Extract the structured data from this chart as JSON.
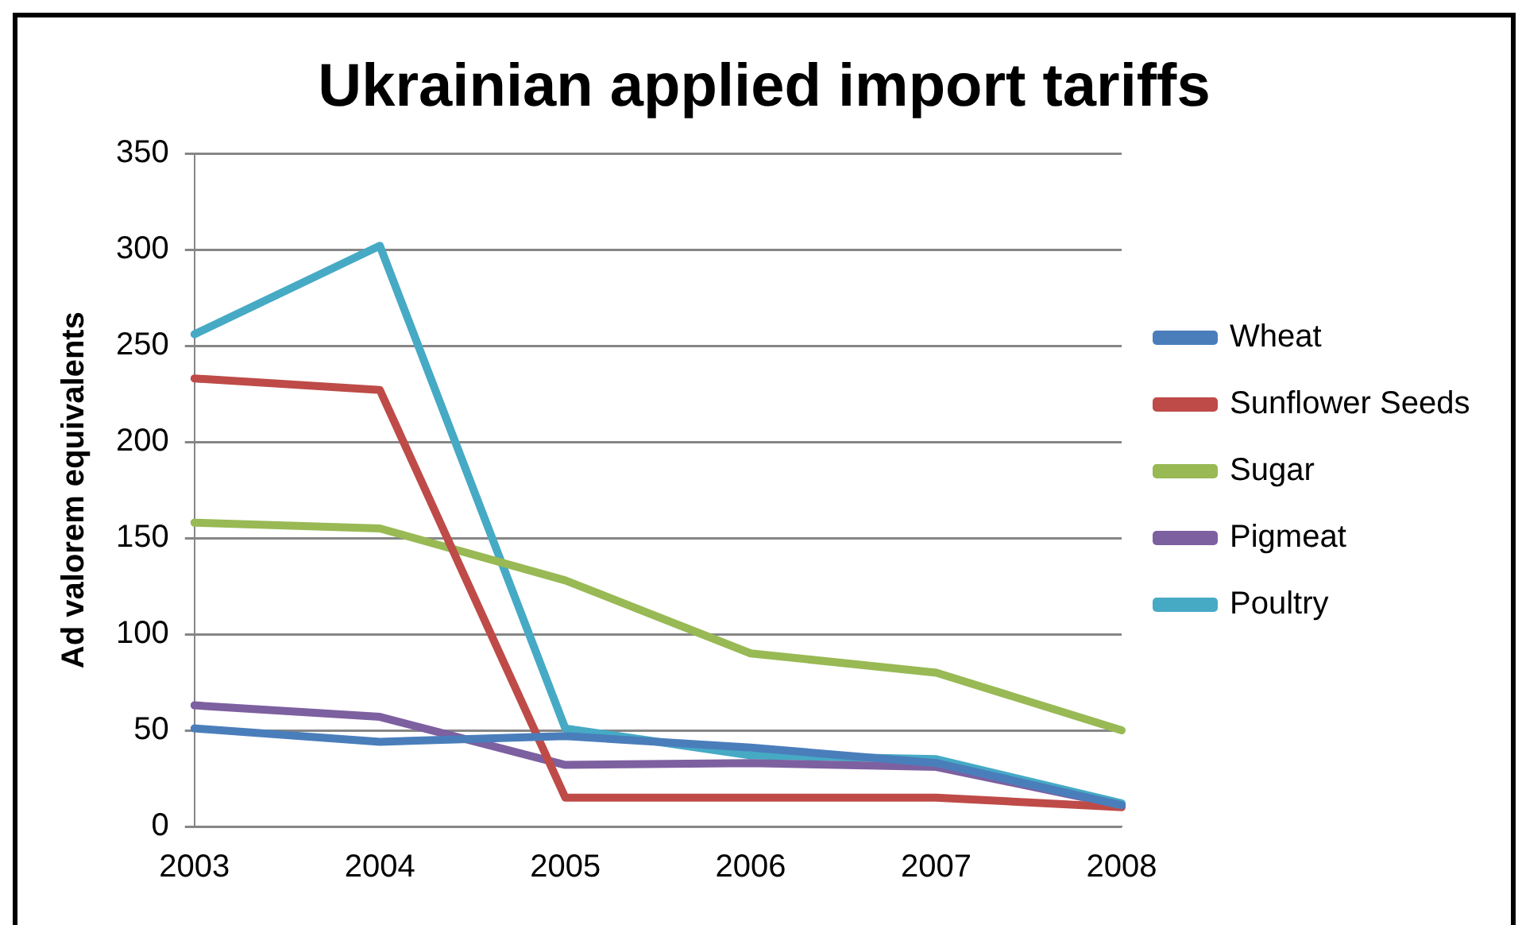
{
  "chart_data": {
    "type": "line",
    "title": "Ukrainian applied import tariffs",
    "ylabel": "Ad valorem equivalents",
    "categories": [
      "2003",
      "2004",
      "2005",
      "2006",
      "2007",
      "2008"
    ],
    "series": [
      {
        "name": "Wheat",
        "color": "#4a7ebb",
        "values": [
          51,
          44,
          47,
          41,
          33,
          11
        ]
      },
      {
        "name": "Sunflower Seeds",
        "color": "#be4b48",
        "values": [
          233,
          227,
          15,
          15,
          15,
          10
        ]
      },
      {
        "name": "Sugar",
        "color": "#98b954",
        "values": [
          158,
          155,
          128,
          90,
          80,
          50
        ]
      },
      {
        "name": "Pigmeat",
        "color": "#7d60a0",
        "values": [
          63,
          57,
          32,
          33,
          31,
          11
        ]
      },
      {
        "name": "Poultry",
        "color": "#46aac5",
        "values": [
          256,
          302,
          51,
          37,
          35,
          12
        ]
      }
    ],
    "ylim": [
      0,
      350
    ],
    "yticks": [
      0,
      50,
      100,
      150,
      200,
      250,
      300,
      350
    ],
    "grid": "y",
    "legend": "right",
    "marker": "none",
    "line_style": "solid"
  }
}
